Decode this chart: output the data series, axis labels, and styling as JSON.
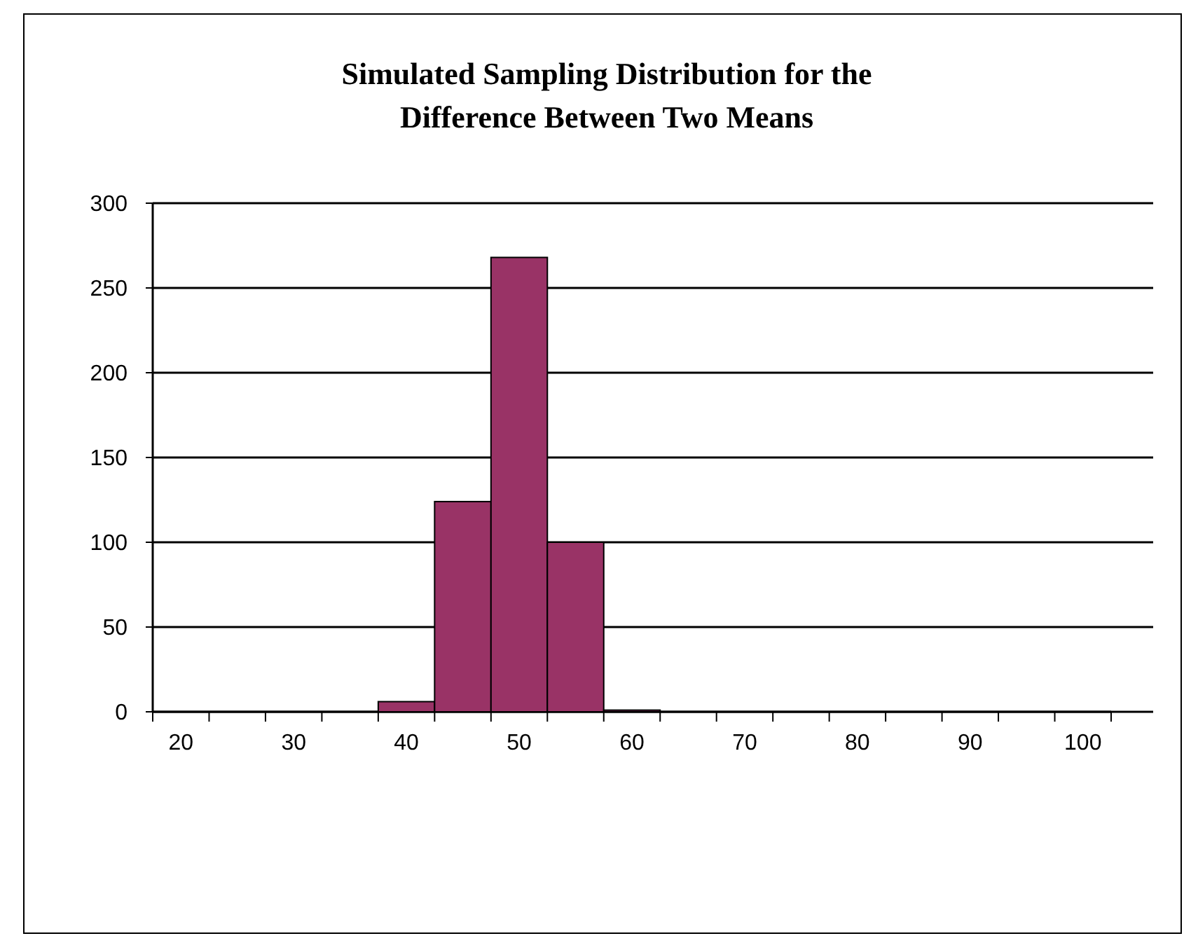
{
  "chart_data": {
    "type": "bar",
    "title": "Simulated Sampling Distribution for the\nDifference Between Two Means",
    "categories": [
      "20",
      null,
      "30",
      null,
      "40",
      null,
      "50",
      null,
      "60",
      null,
      "70",
      null,
      "80",
      null,
      "90",
      null,
      "100"
    ],
    "values": [
      0,
      0,
      0,
      0,
      6,
      124,
      268,
      100,
      1,
      0,
      0,
      0,
      0,
      0,
      0,
      0,
      0
    ],
    "color": "#993366",
    "ylim": [
      0,
      300
    ],
    "yticks": [
      0,
      50,
      100,
      150,
      200,
      250,
      300
    ],
    "grid": "y"
  }
}
